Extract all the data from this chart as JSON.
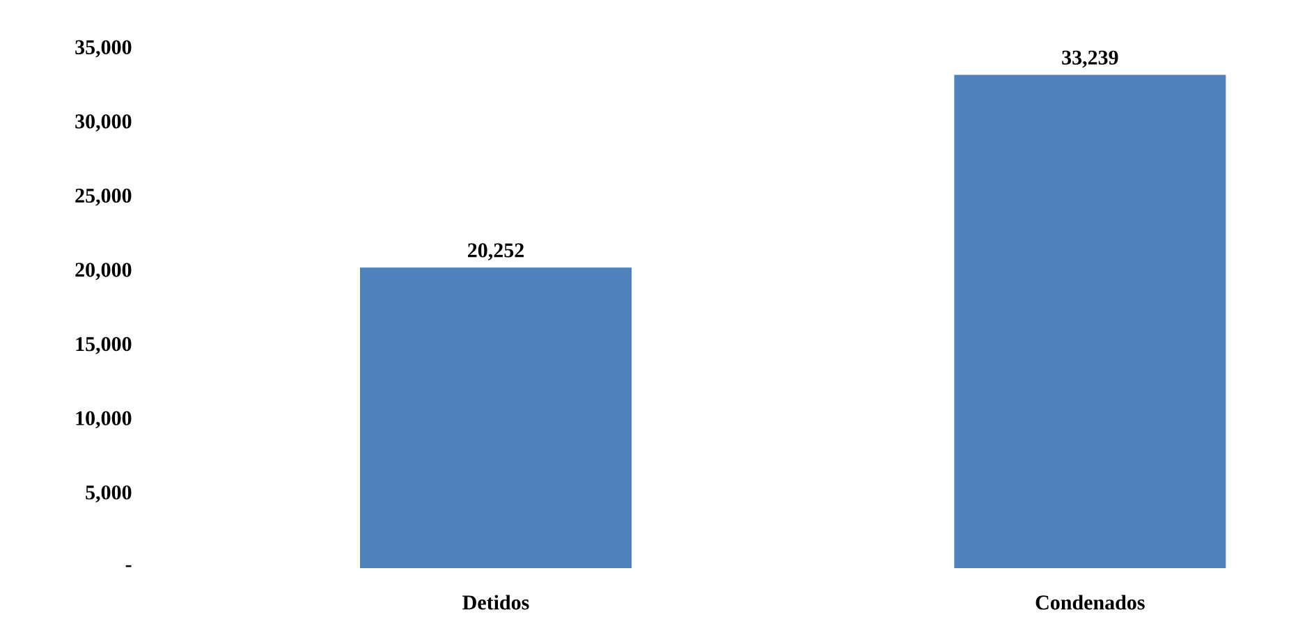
{
  "chart_data": {
    "type": "bar",
    "categories": [
      "Detidos",
      "Condenados"
    ],
    "values": [
      20252,
      33239
    ],
    "value_labels": [
      "20,252",
      "33,239"
    ],
    "color": "#4f81bd",
    "ylim": [
      0,
      35000
    ],
    "yticks": [
      {
        "value": 0,
        "label": "-"
      },
      {
        "value": 5000,
        "label": "5,000"
      },
      {
        "value": 10000,
        "label": "10,000"
      },
      {
        "value": 15000,
        "label": "15,000"
      },
      {
        "value": 20000,
        "label": "20,000"
      },
      {
        "value": 25000,
        "label": "25,000"
      },
      {
        "value": 30000,
        "label": "30,000"
      },
      {
        "value": 35000,
        "label": "35,000"
      }
    ],
    "grid": false
  }
}
